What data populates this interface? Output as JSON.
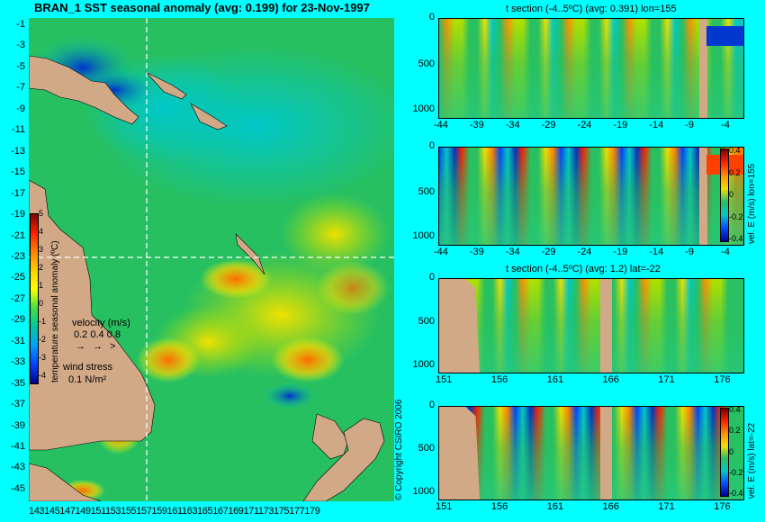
{
  "map": {
    "title": "BRAN_1 SST seasonal anomaly (avg: 0.199) for 23-Nov-1997",
    "lat_ticks": [
      "-1",
      "-3",
      "-5",
      "-7",
      "-9",
      "-11",
      "-13",
      "-15",
      "-17",
      "-19",
      "-21",
      "-23",
      "-25",
      "-27",
      "-29",
      "-31",
      "-33",
      "-35",
      "-37",
      "-39",
      "-41",
      "-43",
      "-45"
    ],
    "lon_ticks_text": "143145147149151153155157159161163165167169171173175177179",
    "colorbar": {
      "label": "temperature seasonal anomaly (ºC)",
      "ticks": [
        "5",
        "4",
        "3",
        "2",
        "1",
        "0",
        "-1",
        "-2",
        "-3",
        "-4"
      ]
    },
    "velocity_legend": {
      "title": "velocity (m/s)",
      "values": "0.2 0.4 0.8"
    },
    "wind_legend": {
      "title": "wind stress",
      "value": "0.1 N/m²"
    }
  },
  "panels": [
    {
      "title": "t section (-4..5ºC) (avg: 0.391) lon=155",
      "x_ticks": [
        "-44",
        "-39",
        "-34",
        "-29",
        "-24",
        "-19",
        "-14",
        "-9",
        "-4"
      ],
      "y_ticks": [
        "0",
        "500",
        "1000"
      ]
    },
    {
      "title": "",
      "x_ticks": [
        "-44",
        "-39",
        "-34",
        "-29",
        "-24",
        "-19",
        "-14",
        "-9",
        "-4"
      ],
      "y_ticks": [
        "0",
        "500",
        "1000"
      ],
      "colorbar_label": "vel. E (m/s) lon=155",
      "colorbar_ticks": [
        "0.4",
        "0.2",
        "0",
        "-0.2",
        "-0.4"
      ]
    },
    {
      "title": "t section (-4..5ºC) (avg: 1.2) lat=-22",
      "x_ticks": [
        "151",
        "156",
        "161",
        "166",
        "171",
        "176"
      ],
      "y_ticks": [
        "0",
        "500",
        "1000"
      ]
    },
    {
      "title": "",
      "x_ticks": [
        "151",
        "156",
        "161",
        "166",
        "171",
        "176"
      ],
      "y_ticks": [
        "0",
        "500",
        "1000"
      ],
      "colorbar_label": "vel. E (m/s) lat=-22",
      "colorbar_ticks": [
        "0.4",
        "0.2",
        "0",
        "-0.2",
        "-0.4"
      ]
    }
  ],
  "copyright": "© Copyright CSIRO 2006",
  "colors": {
    "background": "#00ffff",
    "land": "#d2a987"
  },
  "chart_data": [
    {
      "type": "heatmap",
      "title": "BRAN_1 SST seasonal anomaly (avg: 0.199) for 23-Nov-1997",
      "x": [
        143,
        145,
        147,
        149,
        151,
        153,
        155,
        157,
        159,
        161,
        163,
        165,
        167,
        169,
        171,
        173,
        175,
        177,
        179
      ],
      "y": [
        -1,
        -3,
        -5,
        -7,
        -9,
        -11,
        -13,
        -15,
        -17,
        -19,
        -21,
        -23,
        -25,
        -27,
        -29,
        -31,
        -33,
        -35,
        -37,
        -39,
        -41,
        -43,
        -45
      ],
      "color_range": [
        -4,
        5
      ],
      "average": 0.199
    },
    {
      "type": "heatmap",
      "title": "t section (-4..5ºC) (avg: 0.391) lon=155",
      "x_range": [
        -44,
        -2
      ],
      "y_range": [
        0,
        1050
      ],
      "color_range": [
        -4,
        5
      ],
      "average": 0.391
    },
    {
      "type": "heatmap",
      "title": "vel. E (m/s) lon=155",
      "x_range": [
        -44,
        -2
      ],
      "y_range": [
        0,
        1050
      ],
      "color_range": [
        -0.4,
        0.4
      ]
    },
    {
      "type": "heatmap",
      "title": "t section (-4..5ºC) (avg: 1.2) lat=-22",
      "x_range": [
        151,
        178
      ],
      "y_range": [
        0,
        1050
      ],
      "color_range": [
        -4,
        5
      ],
      "average": 1.2
    },
    {
      "type": "heatmap",
      "title": "vel. E (m/s) lat=-22",
      "x_range": [
        151,
        178
      ],
      "y_range": [
        0,
        1050
      ],
      "color_range": [
        -0.4,
        0.4
      ]
    }
  ]
}
